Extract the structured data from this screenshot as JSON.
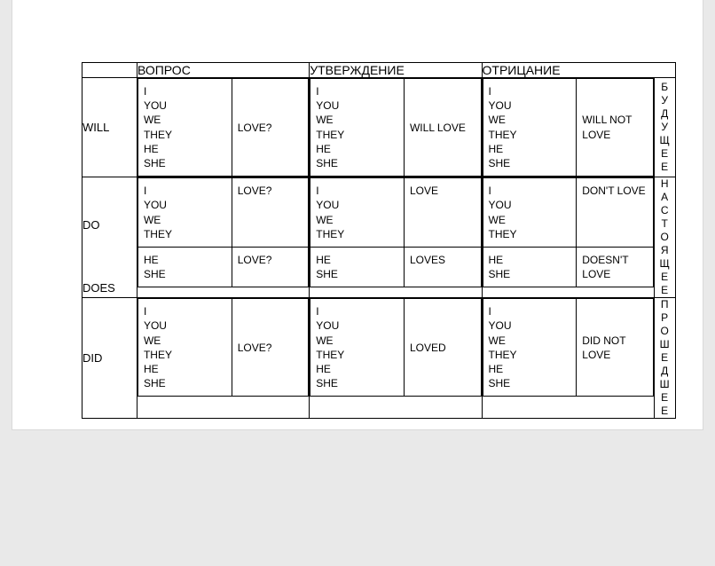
{
  "headers": {
    "question": "ВОПРОС",
    "statement": "УТВЕРЖДЕНИЕ",
    "negation": "ОТРИЦАНИЕ"
  },
  "tense_labels": {
    "future": "БУДУЩЕЕ",
    "present": "НАСТОЯЩЕЕ",
    "past": "ПРОШЕДШЕЕ"
  },
  "aux": {
    "future": "WILL",
    "present_do": "DO",
    "present_does": "DOES",
    "past": "DID"
  },
  "pronoun_lines": {
    "all": "I\nYOU\nWE\nTHEY\nHE\nSHE",
    "group1": "I\nYOU\nWE\nTHEY",
    "group2": "HE\nSHE"
  },
  "cells": {
    "future": {
      "question_verb": "LOVE?",
      "statement_verb": "WILL LOVE",
      "negation_verb": "WILL NOT LOVE"
    },
    "present": {
      "question_verb1": "LOVE?",
      "question_verb2": "LOVE?",
      "statement_verb1": "LOVE",
      "statement_verb2": "LOVES",
      "negation_verb1": "DON'T LOVE",
      "negation_verb2": "DOESN'T LOVE"
    },
    "past": {
      "question_verb": "LOVE?",
      "statement_verb": "LOVED",
      "negation_verb": "DID NOT LOVE"
    }
  }
}
